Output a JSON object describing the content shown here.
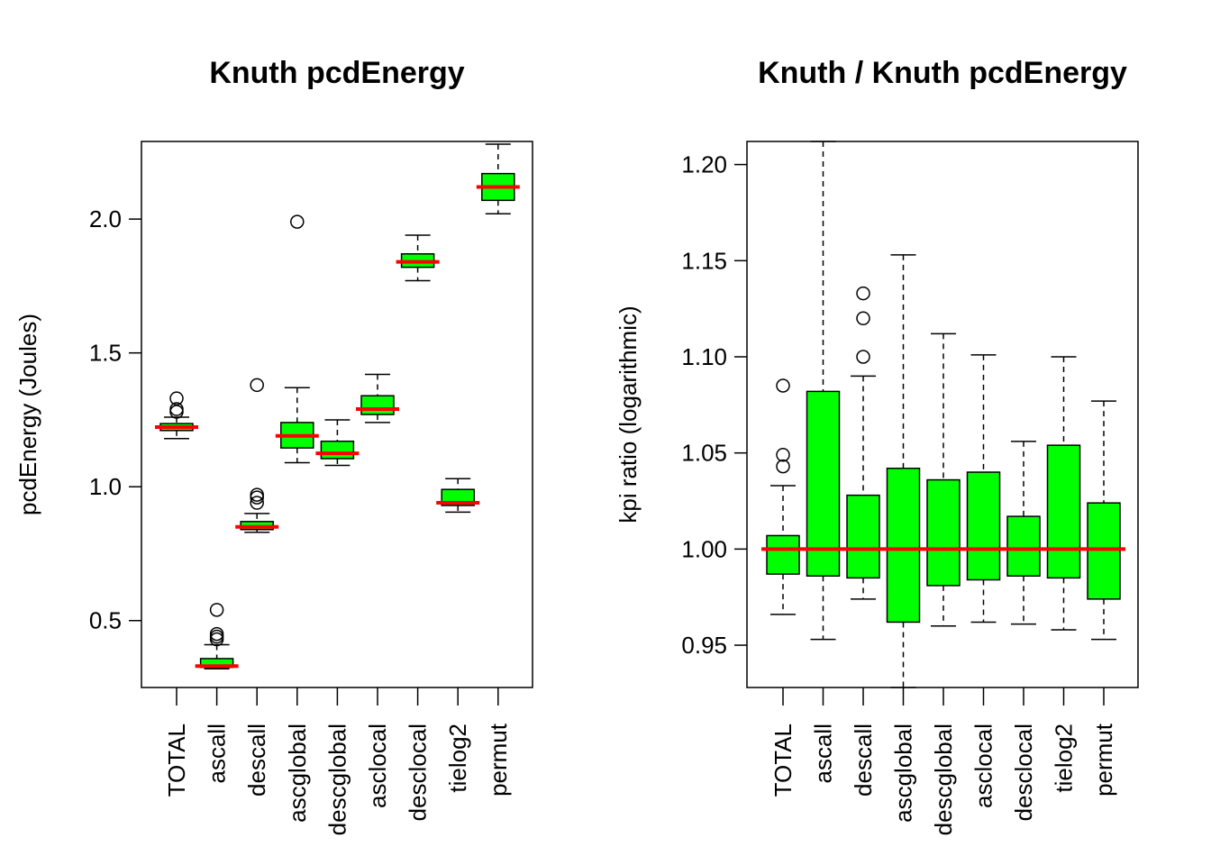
{
  "colors": {
    "box_fill": "#00ff00",
    "median": "#ff0000",
    "stroke": "#000000",
    "background": "#ffffff"
  },
  "chart_data": [
    {
      "type": "boxplot",
      "title": "Knuth pcdEnergy",
      "xlabel": "",
      "ylabel": "pcdEnergy (Joules)",
      "ylim": [
        0.25,
        2.29
      ],
      "yticks": [
        0.5,
        1.0,
        1.5,
        2.0
      ],
      "ytick_labels": [
        "0.5",
        "1.0",
        "1.5",
        "2.0"
      ],
      "categories": [
        "TOTAL",
        "ascall",
        "descall",
        "ascglobal",
        "descglobal",
        "asclocal",
        "desclocal",
        "tielog2",
        "permut"
      ],
      "boxes": [
        {
          "name": "TOTAL",
          "whisker_low": 1.18,
          "q1": 1.21,
          "median": 1.223,
          "q3": 1.236,
          "whisker_high": 1.26,
          "outliers": [
            1.33,
            1.29,
            1.28
          ]
        },
        {
          "name": "ascall",
          "whisker_low": 0.32,
          "q1": 0.325,
          "median": 0.33,
          "q3": 0.358,
          "whisker_high": 0.41,
          "outliers": [
            0.54,
            0.45,
            0.44,
            0.43
          ]
        },
        {
          "name": "descall",
          "whisker_low": 0.83,
          "q1": 0.84,
          "median": 0.85,
          "q3": 0.87,
          "whisker_high": 0.9,
          "outliers": [
            1.38,
            0.97,
            0.96,
            0.94
          ]
        },
        {
          "name": "ascglobal",
          "whisker_low": 1.09,
          "q1": 1.145,
          "median": 1.19,
          "q3": 1.24,
          "whisker_high": 1.37,
          "outliers": [
            1.99
          ]
        },
        {
          "name": "descglobal",
          "whisker_low": 1.08,
          "q1": 1.105,
          "median": 1.125,
          "q3": 1.17,
          "whisker_high": 1.25,
          "outliers": []
        },
        {
          "name": "asclocal",
          "whisker_low": 1.24,
          "q1": 1.27,
          "median": 1.29,
          "q3": 1.34,
          "whisker_high": 1.42,
          "outliers": []
        },
        {
          "name": "desclocal",
          "whisker_low": 1.77,
          "q1": 1.82,
          "median": 1.84,
          "q3": 1.87,
          "whisker_high": 1.94,
          "outliers": []
        },
        {
          "name": "tielog2",
          "whisker_low": 0.905,
          "q1": 0.93,
          "median": 0.94,
          "q3": 0.99,
          "whisker_high": 1.03,
          "outliers": []
        },
        {
          "name": "permut",
          "whisker_low": 2.02,
          "q1": 2.07,
          "median": 2.12,
          "q3": 2.17,
          "whisker_high": 2.28,
          "outliers": []
        }
      ]
    },
    {
      "type": "boxplot",
      "title": "Knuth / Knuth pcdEnergy",
      "xlabel": "",
      "ylabel": "kpi ratio (logarithmic)",
      "ylim": [
        0.928,
        1.212
      ],
      "yticks": [
        0.95,
        1.0,
        1.05,
        1.1,
        1.15,
        1.2
      ],
      "ytick_labels": [
        "0.95",
        "1.00",
        "1.05",
        "1.10",
        "1.15",
        "1.20"
      ],
      "reference_line": 1.0,
      "categories": [
        "TOTAL",
        "ascall",
        "descall",
        "ascglobal",
        "descglobal",
        "asclocal",
        "desclocal",
        "tielog2",
        "permut"
      ],
      "boxes": [
        {
          "name": "TOTAL",
          "whisker_low": 0.966,
          "q1": 0.987,
          "median": 1.0,
          "q3": 1.007,
          "whisker_high": 1.033,
          "outliers": [
            1.085,
            1.049,
            1.043
          ]
        },
        {
          "name": "ascall",
          "whisker_low": 0.953,
          "q1": 0.986,
          "median": 1.0,
          "q3": 1.082,
          "whisker_high": 1.212,
          "outliers": []
        },
        {
          "name": "descall",
          "whisker_low": 0.974,
          "q1": 0.985,
          "median": 1.0,
          "q3": 1.028,
          "whisker_high": 1.09,
          "outliers": [
            1.133,
            1.12,
            1.1
          ]
        },
        {
          "name": "ascglobal",
          "whisker_low": 0.928,
          "q1": 0.962,
          "median": 1.0,
          "q3": 1.042,
          "whisker_high": 1.153,
          "outliers": []
        },
        {
          "name": "descglobal",
          "whisker_low": 0.96,
          "q1": 0.981,
          "median": 1.0,
          "q3": 1.036,
          "whisker_high": 1.112,
          "outliers": []
        },
        {
          "name": "asclocal",
          "whisker_low": 0.962,
          "q1": 0.984,
          "median": 1.0,
          "q3": 1.04,
          "whisker_high": 1.101,
          "outliers": []
        },
        {
          "name": "desclocal",
          "whisker_low": 0.961,
          "q1": 0.986,
          "median": 1.0,
          "q3": 1.017,
          "whisker_high": 1.056,
          "outliers": []
        },
        {
          "name": "tielog2",
          "whisker_low": 0.958,
          "q1": 0.985,
          "median": 1.0,
          "q3": 1.054,
          "whisker_high": 1.1,
          "outliers": []
        },
        {
          "name": "permut",
          "whisker_low": 0.953,
          "q1": 0.974,
          "median": 1.0,
          "q3": 1.024,
          "whisker_high": 1.077,
          "outliers": []
        }
      ]
    }
  ]
}
